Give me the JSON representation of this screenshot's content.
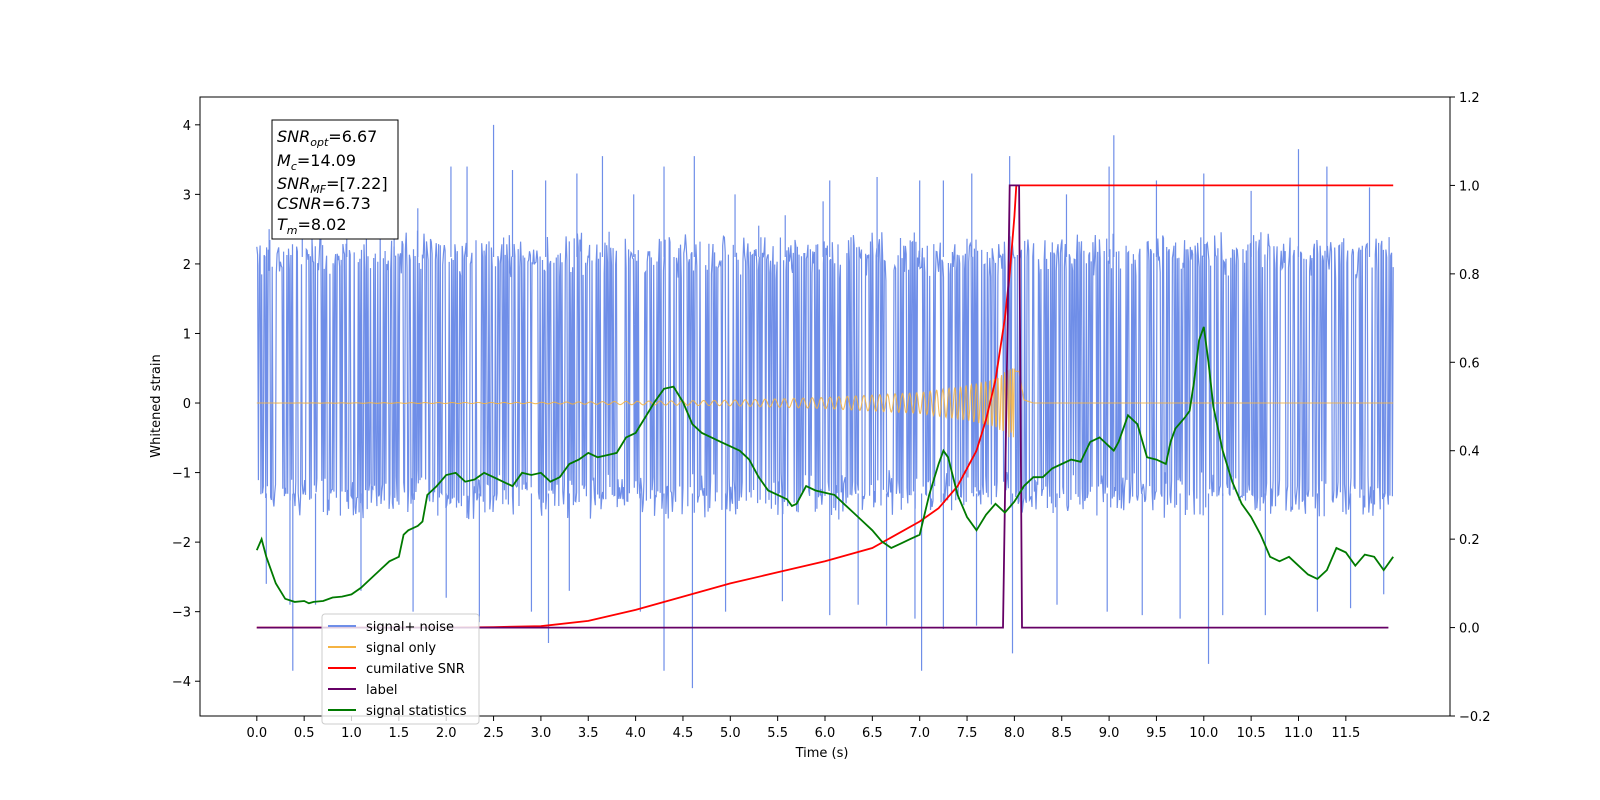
{
  "chart_data": {
    "type": "line",
    "xlabel": "Time (s)",
    "ylabel": "Whitened strain",
    "xlim": [
      -0.6,
      12.6
    ],
    "ylim": [
      -4.5,
      4.4
    ],
    "y2lim": [
      -0.2,
      1.2
    ],
    "x_ticks": [
      "0.0",
      "0.5",
      "1.0",
      "1.5",
      "2.0",
      "2.5",
      "3.0",
      "3.5",
      "4.0",
      "4.5",
      "5.0",
      "5.5",
      "6.0",
      "6.5",
      "7.0",
      "7.5",
      "8.0",
      "8.5",
      "9.0",
      "9.5",
      "10.0",
      "10.5",
      "11.0",
      "11.5"
    ],
    "y_ticks": [
      "4",
      "3",
      "2",
      "1",
      "0",
      "−1",
      "−2",
      "−3",
      "−4"
    ],
    "y2_ticks": [
      "1.2",
      "1.0",
      "0.8",
      "0.6",
      "0.4",
      "0.2",
      "0.0",
      "−0.2"
    ],
    "grid": false,
    "legend_position": "lower-left",
    "colors": {
      "signal_noise": "#6f8ee8",
      "signal_only": "#f5b342",
      "cumulative_snr": "#ff0000",
      "label": "#660066",
      "signal_statistics": "#007a00"
    },
    "annotation": {
      "snr_opt": {
        "sym": "SNR",
        "sub": "opt",
        "value": "=6.67"
      },
      "mc": {
        "sym": "M",
        "sub": "c",
        "value": "=14.09"
      },
      "snr_mf": {
        "sym": "SNR",
        "sub": "MF",
        "value": "=[7.22]"
      },
      "csnr": {
        "sym": "CSNR",
        "sub": "",
        "value": "=6.73"
      },
      "tm": {
        "sym": "T",
        "sub": "m",
        "value": "=8.02"
      }
    },
    "series": [
      {
        "name": "signal+ noise",
        "axis": "left",
        "t_range": [
          0.0,
          12.0
        ],
        "band": [
          -1.5,
          2.3
        ],
        "spikes_up": [
          [
            0.13,
            2.5
          ],
          [
            0.48,
            2.6
          ],
          [
            0.95,
            2.75
          ],
          [
            1.45,
            2.9
          ],
          [
            1.7,
            2.8
          ],
          [
            2.05,
            3.4
          ],
          [
            2.22,
            3.4
          ],
          [
            2.5,
            4.0
          ],
          [
            2.7,
            3.35
          ],
          [
            3.05,
            3.2
          ],
          [
            3.38,
            3.3
          ],
          [
            3.65,
            3.55
          ],
          [
            3.98,
            3.0
          ],
          [
            4.3,
            3.4
          ],
          [
            4.62,
            3.55
          ],
          [
            5.05,
            3.0
          ],
          [
            5.3,
            2.55
          ],
          [
            5.58,
            2.7
          ],
          [
            5.98,
            2.9
          ],
          [
            6.05,
            3.2
          ],
          [
            6.55,
            3.25
          ],
          [
            7.0,
            3.2
          ],
          [
            7.25,
            3.2
          ],
          [
            7.55,
            3.3
          ],
          [
            7.95,
            3.55
          ],
          [
            8.55,
            3.0
          ],
          [
            9.0,
            3.4
          ],
          [
            9.05,
            3.85
          ],
          [
            9.5,
            3.2
          ],
          [
            10.0,
            3.3
          ],
          [
            10.5,
            3.05
          ],
          [
            11.0,
            3.65
          ],
          [
            11.3,
            3.4
          ],
          [
            11.75,
            3.1
          ]
        ],
        "spikes_down": [
          [
            0.1,
            -2.6
          ],
          [
            0.35,
            -2.9
          ],
          [
            0.38,
            -3.85
          ],
          [
            0.62,
            -2.9
          ],
          [
            1.1,
            -2.7
          ],
          [
            1.65,
            -3.0
          ],
          [
            2.0,
            -2.8
          ],
          [
            2.35,
            -3.15
          ],
          [
            2.9,
            -3.0
          ],
          [
            3.08,
            -3.45
          ],
          [
            3.3,
            -2.7
          ],
          [
            4.05,
            -3.0
          ],
          [
            4.3,
            -3.85
          ],
          [
            4.6,
            -4.1
          ],
          [
            4.95,
            -3.0
          ],
          [
            5.55,
            -2.85
          ],
          [
            6.05,
            -3.05
          ],
          [
            6.35,
            -2.9
          ],
          [
            6.65,
            -3.2
          ],
          [
            6.95,
            -3.1
          ],
          [
            7.02,
            -3.85
          ],
          [
            7.25,
            -3.25
          ],
          [
            7.6,
            -3.2
          ],
          [
            7.98,
            -3.6
          ],
          [
            8.45,
            -2.9
          ],
          [
            8.98,
            -3.0
          ],
          [
            9.35,
            -3.05
          ],
          [
            9.75,
            -3.1
          ],
          [
            10.05,
            -3.75
          ],
          [
            10.2,
            -3.05
          ],
          [
            10.65,
            -3.05
          ],
          [
            11.2,
            -3.0
          ],
          [
            11.55,
            -2.95
          ],
          [
            11.9,
            -2.75
          ]
        ]
      },
      {
        "name": "signal only",
        "axis": "left",
        "t_range": [
          0.0,
          12.0
        ],
        "merger_time": 8.02,
        "envelope_points": [
          [
            0.0,
            0.0
          ],
          [
            3.0,
            0.01
          ],
          [
            5.0,
            0.04
          ],
          [
            6.0,
            0.08
          ],
          [
            7.0,
            0.15
          ],
          [
            7.5,
            0.25
          ],
          [
            7.8,
            0.35
          ],
          [
            7.95,
            0.5
          ],
          [
            8.05,
            0.5
          ],
          [
            8.1,
            0.05
          ],
          [
            8.2,
            0.0
          ],
          [
            12.0,
            0.0
          ]
        ]
      },
      {
        "name": "cumilative SNR",
        "axis": "right",
        "points": [
          [
            0.0,
            0.0
          ],
          [
            2.0,
            0.0
          ],
          [
            2.5,
            0.001
          ],
          [
            3.0,
            0.003
          ],
          [
            3.5,
            0.015
          ],
          [
            4.0,
            0.04
          ],
          [
            4.5,
            0.07
          ],
          [
            5.0,
            0.1
          ],
          [
            5.5,
            0.125
          ],
          [
            6.0,
            0.15
          ],
          [
            6.5,
            0.18
          ],
          [
            7.0,
            0.24
          ],
          [
            7.2,
            0.27
          ],
          [
            7.4,
            0.32
          ],
          [
            7.6,
            0.4
          ],
          [
            7.7,
            0.47
          ],
          [
            7.8,
            0.56
          ],
          [
            7.9,
            0.7
          ],
          [
            7.95,
            0.8
          ],
          [
            8.0,
            0.93
          ],
          [
            8.02,
            1.0
          ],
          [
            11.5,
            1.0
          ],
          [
            12.0,
            1.0
          ]
        ]
      },
      {
        "name": "label",
        "axis": "right",
        "points": [
          [
            0.0,
            0.0
          ],
          [
            7.88,
            0.0
          ],
          [
            7.95,
            1.0
          ],
          [
            8.05,
            1.0
          ],
          [
            8.08,
            0.0
          ],
          [
            11.95,
            0.0
          ]
        ]
      },
      {
        "name": "signal statistics",
        "axis": "right",
        "points": [
          [
            0.0,
            0.175
          ],
          [
            0.05,
            0.2
          ],
          [
            0.1,
            0.16
          ],
          [
            0.2,
            0.1
          ],
          [
            0.3,
            0.065
          ],
          [
            0.4,
            0.058
          ],
          [
            0.5,
            0.06
          ],
          [
            0.55,
            0.055
          ],
          [
            0.6,
            0.058
          ],
          [
            0.7,
            0.06
          ],
          [
            0.8,
            0.068
          ],
          [
            0.9,
            0.07
          ],
          [
            1.0,
            0.075
          ],
          [
            1.1,
            0.09
          ],
          [
            1.2,
            0.11
          ],
          [
            1.3,
            0.13
          ],
          [
            1.4,
            0.15
          ],
          [
            1.5,
            0.16
          ],
          [
            1.55,
            0.21
          ],
          [
            1.6,
            0.22
          ],
          [
            1.7,
            0.23
          ],
          [
            1.75,
            0.24
          ],
          [
            1.8,
            0.3
          ],
          [
            1.9,
            0.32
          ],
          [
            2.0,
            0.345
          ],
          [
            2.1,
            0.35
          ],
          [
            2.2,
            0.33
          ],
          [
            2.3,
            0.335
          ],
          [
            2.4,
            0.35
          ],
          [
            2.5,
            0.34
          ],
          [
            2.6,
            0.33
          ],
          [
            2.7,
            0.32
          ],
          [
            2.8,
            0.35
          ],
          [
            2.9,
            0.345
          ],
          [
            3.0,
            0.35
          ],
          [
            3.1,
            0.33
          ],
          [
            3.2,
            0.34
          ],
          [
            3.3,
            0.37
          ],
          [
            3.4,
            0.38
          ],
          [
            3.5,
            0.395
          ],
          [
            3.6,
            0.385
          ],
          [
            3.7,
            0.39
          ],
          [
            3.8,
            0.395
          ],
          [
            3.9,
            0.43
          ],
          [
            4.0,
            0.44
          ],
          [
            4.2,
            0.51
          ],
          [
            4.3,
            0.54
          ],
          [
            4.4,
            0.545
          ],
          [
            4.5,
            0.51
          ],
          [
            4.6,
            0.46
          ],
          [
            4.7,
            0.44
          ],
          [
            4.8,
            0.43
          ],
          [
            4.9,
            0.42
          ],
          [
            5.0,
            0.41
          ],
          [
            5.1,
            0.4
          ],
          [
            5.2,
            0.38
          ],
          [
            5.3,
            0.34
          ],
          [
            5.4,
            0.31
          ],
          [
            5.5,
            0.3
          ],
          [
            5.6,
            0.29
          ],
          [
            5.65,
            0.275
          ],
          [
            5.7,
            0.28
          ],
          [
            5.8,
            0.32
          ],
          [
            5.9,
            0.31
          ],
          [
            6.0,
            0.305
          ],
          [
            6.1,
            0.3
          ],
          [
            6.2,
            0.28
          ],
          [
            6.3,
            0.26
          ],
          [
            6.4,
            0.24
          ],
          [
            6.5,
            0.22
          ],
          [
            6.6,
            0.195
          ],
          [
            6.7,
            0.18
          ],
          [
            6.8,
            0.19
          ],
          [
            6.9,
            0.2
          ],
          [
            7.0,
            0.21
          ],
          [
            7.1,
            0.3
          ],
          [
            7.2,
            0.37
          ],
          [
            7.25,
            0.4
          ],
          [
            7.3,
            0.385
          ],
          [
            7.4,
            0.3
          ],
          [
            7.5,
            0.25
          ],
          [
            7.6,
            0.22
          ],
          [
            7.7,
            0.255
          ],
          [
            7.8,
            0.28
          ],
          [
            7.9,
            0.26
          ],
          [
            8.0,
            0.285
          ],
          [
            8.1,
            0.32
          ],
          [
            8.2,
            0.34
          ],
          [
            8.3,
            0.34
          ],
          [
            8.4,
            0.36
          ],
          [
            8.5,
            0.37
          ],
          [
            8.6,
            0.38
          ],
          [
            8.7,
            0.375
          ],
          [
            8.8,
            0.42
          ],
          [
            8.9,
            0.43
          ],
          [
            9.0,
            0.41
          ],
          [
            9.05,
            0.4
          ],
          [
            9.1,
            0.42
          ],
          [
            9.2,
            0.48
          ],
          [
            9.3,
            0.46
          ],
          [
            9.4,
            0.385
          ],
          [
            9.5,
            0.38
          ],
          [
            9.6,
            0.37
          ],
          [
            9.65,
            0.42
          ],
          [
            9.7,
            0.45
          ],
          [
            9.8,
            0.475
          ],
          [
            9.85,
            0.49
          ],
          [
            9.9,
            0.56
          ],
          [
            9.95,
            0.65
          ],
          [
            10.0,
            0.68
          ],
          [
            10.05,
            0.6
          ],
          [
            10.1,
            0.5
          ],
          [
            10.2,
            0.4
          ],
          [
            10.3,
            0.33
          ],
          [
            10.4,
            0.28
          ],
          [
            10.5,
            0.25
          ],
          [
            10.6,
            0.21
          ],
          [
            10.7,
            0.16
          ],
          [
            10.8,
            0.15
          ],
          [
            10.9,
            0.16
          ],
          [
            11.0,
            0.14
          ],
          [
            11.1,
            0.12
          ],
          [
            11.2,
            0.11
          ],
          [
            11.3,
            0.13
          ],
          [
            11.4,
            0.18
          ],
          [
            11.5,
            0.17
          ],
          [
            11.6,
            0.14
          ],
          [
            11.7,
            0.165
          ],
          [
            11.8,
            0.16
          ],
          [
            11.9,
            0.13
          ],
          [
            12.0,
            0.16
          ]
        ]
      }
    ]
  }
}
